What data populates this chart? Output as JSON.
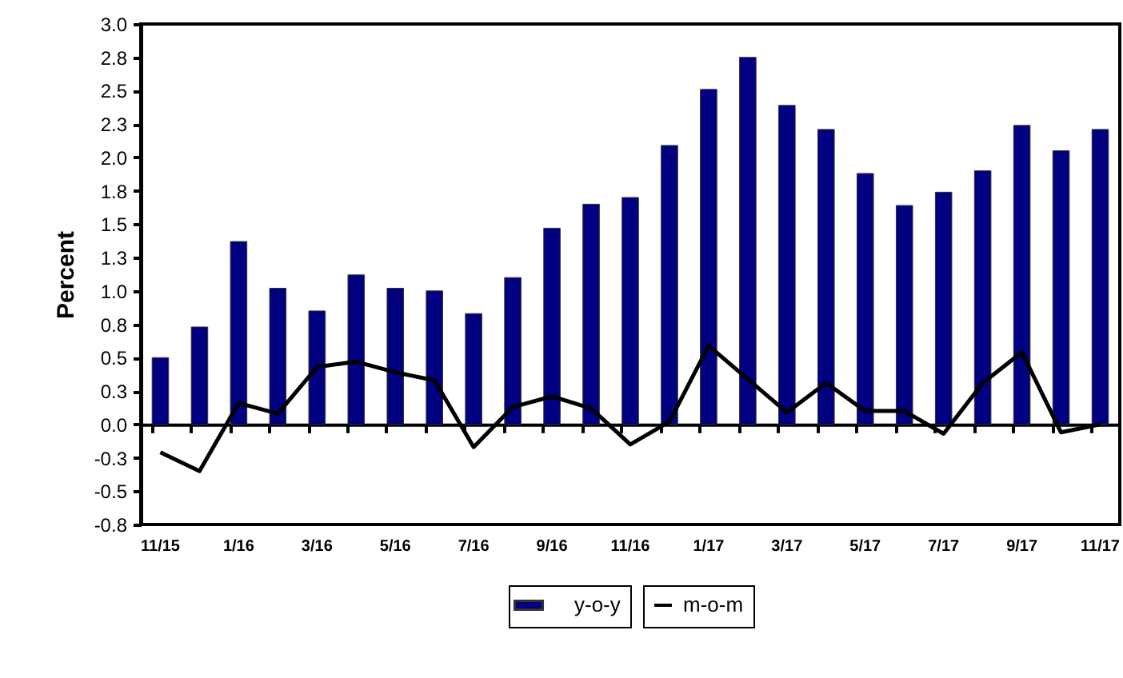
{
  "chart_data": {
    "type": "bar",
    "ylabel": "Percent",
    "categories": [
      "11/15",
      null,
      "1/16",
      null,
      "3/16",
      null,
      "5/16",
      null,
      "7/16",
      null,
      "9/16",
      null,
      "11/16",
      null,
      "1/17",
      null,
      "3/17",
      null,
      "5/17",
      null,
      "7/17",
      null,
      "9/17",
      null,
      "11/17"
    ],
    "series": [
      {
        "name": "y-o-y",
        "color": "#000080",
        "values": [
          0.5,
          0.73,
          1.37,
          1.02,
          0.85,
          1.12,
          1.02,
          1.0,
          0.83,
          1.1,
          1.47,
          1.65,
          1.7,
          2.09,
          2.51,
          2.75,
          2.39,
          2.21,
          1.88,
          1.64,
          1.74,
          1.9,
          2.24,
          2.05,
          2.21
        ]
      },
      {
        "name": "m-o-m",
        "type": "line",
        "color": "#000000",
        "values": [
          -0.21,
          -0.35,
          0.16,
          0.08,
          0.43,
          0.47,
          0.39,
          0.33,
          -0.17,
          0.13,
          0.21,
          0.12,
          -0.15,
          0.02,
          0.59,
          0.34,
          0.09,
          0.31,
          0.1,
          0.1,
          -0.07,
          0.31,
          0.54,
          -0.06,
          0.0
        ]
      }
    ],
    "ylim": [
      -0.75,
      3.0
    ],
    "yticks": [
      {
        "value": -0.75,
        "label": "-0.8"
      },
      -0.5,
      {
        "value": -0.25,
        "label": "-0.3"
      },
      {
        "value": 0,
        "label": "0.0"
      },
      {
        "value": 0.25,
        "label": "0.3"
      },
      0.5,
      {
        "value": 0.75,
        "label": "0.8"
      },
      {
        "value": 1,
        "label": "1.0"
      },
      {
        "value": 1.25,
        "label": "1.3"
      },
      1.5,
      {
        "value": 1.75,
        "label": "1.8"
      },
      {
        "value": 2,
        "label": "2.0"
      },
      {
        "value": 2.25,
        "label": "2.3"
      },
      2.5,
      {
        "value": 2.75,
        "label": "2.8"
      },
      {
        "value": 3,
        "label": "3.0"
      }
    ],
    "legend": "bottom",
    "marker": "none",
    "line_style": "solid"
  }
}
